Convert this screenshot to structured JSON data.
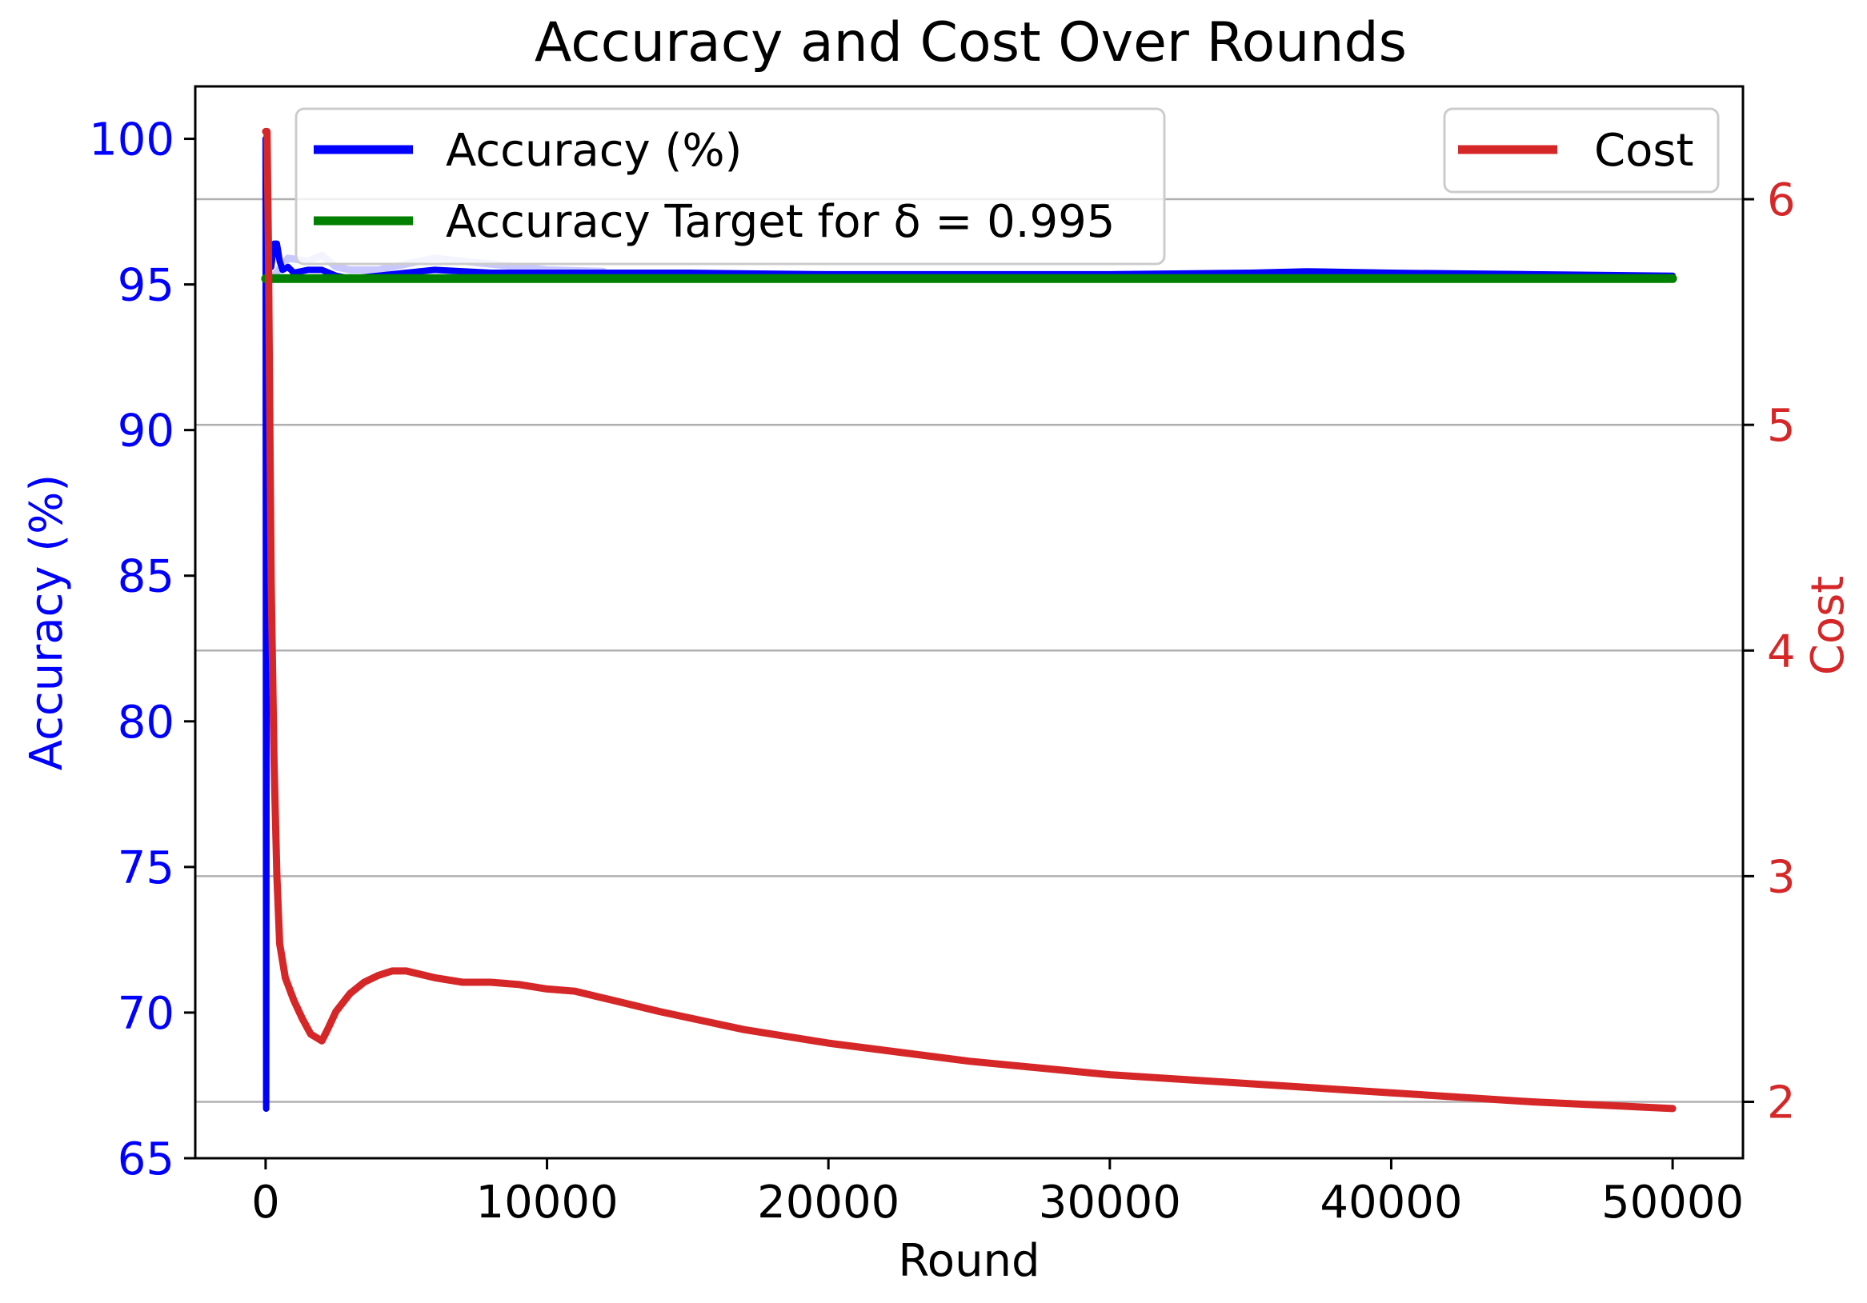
{
  "chart_data": {
    "type": "line",
    "title": "Accuracy and Cost Over Rounds",
    "xlabel": "Round",
    "ylabel_left": "Accuracy (%)",
    "ylabel_right": "Cost",
    "xlim": [
      -2500,
      52500
    ],
    "ylim_left": [
      65,
      101.8
    ],
    "ylim_right": [
      1.75,
      6.5
    ],
    "xticks": [
      0,
      10000,
      20000,
      30000,
      40000,
      50000
    ],
    "yticks_left": [
      65,
      70,
      75,
      80,
      85,
      90,
      95,
      100
    ],
    "yticks_right": [
      2,
      3,
      4,
      5,
      6
    ],
    "grid": "horizontal (right axis)",
    "legend_left": {
      "placement": "upper-left",
      "entries": [
        "Accuracy (%)",
        "Accuracy Target for δ = 0.995"
      ]
    },
    "legend_right": {
      "placement": "upper-right",
      "entries": [
        "Cost"
      ]
    },
    "colors": {
      "accuracy": "#0000ff",
      "accuracy_band": "#c8c8ff",
      "target": "#008000",
      "cost": "#d62728",
      "left_axis": "#0000ff",
      "right_axis": "#d62728"
    },
    "series": [
      {
        "name": "Accuracy (%)",
        "axis": "left",
        "x": [
          0,
          20,
          50,
          100,
          150,
          200,
          300,
          400,
          500,
          600,
          800,
          1000,
          1500,
          2000,
          2500,
          3000,
          4000,
          5000,
          6000,
          8000,
          10000,
          15000,
          20000,
          25000,
          30000,
          35000,
          37000,
          40000,
          45000,
          50000
        ],
        "y": [
          100,
          66.7,
          98.5,
          95.0,
          96.3,
          95.6,
          96.4,
          96.4,
          95.8,
          95.5,
          95.6,
          95.4,
          95.5,
          95.5,
          95.3,
          95.2,
          95.3,
          95.4,
          95.5,
          95.4,
          95.4,
          95.4,
          95.35,
          95.35,
          95.35,
          95.4,
          95.45,
          95.4,
          95.35,
          95.3
        ]
      },
      {
        "name": "Accuracy Target for δ = 0.995",
        "axis": "left",
        "x": [
          0,
          50000
        ],
        "y": [
          95.2,
          95.2
        ]
      },
      {
        "name": "Cost",
        "axis": "right",
        "x": [
          0,
          50,
          100,
          150,
          200,
          300,
          400,
          500,
          700,
          1000,
          1300,
          1600,
          2000,
          2200,
          2500,
          3000,
          3500,
          4000,
          4500,
          5000,
          6000,
          7000,
          8000,
          9000,
          10000,
          11000,
          12000,
          14000,
          17000,
          20000,
          25000,
          30000,
          35000,
          40000,
          45000,
          50000
        ],
        "y": [
          6.3,
          6.3,
          5.8,
          5.0,
          4.3,
          3.5,
          3.0,
          2.7,
          2.55,
          2.45,
          2.37,
          2.3,
          2.27,
          2.32,
          2.4,
          2.48,
          2.53,
          2.56,
          2.58,
          2.58,
          2.55,
          2.53,
          2.53,
          2.52,
          2.5,
          2.49,
          2.46,
          2.4,
          2.32,
          2.26,
          2.18,
          2.12,
          2.08,
          2.04,
          2.0,
          1.97
        ]
      }
    ],
    "accuracy_band": {
      "x": [
        300,
        800,
        1500,
        2000,
        2500,
        3000,
        4000,
        5000,
        6000,
        7000,
        8000,
        9000,
        10000,
        12000
      ],
      "y": [
        95.3,
        95.9,
        95.8,
        96.0,
        95.6,
        95.5,
        95.5,
        95.7,
        95.9,
        95.8,
        95.7,
        95.6,
        95.5,
        95.45
      ]
    }
  }
}
